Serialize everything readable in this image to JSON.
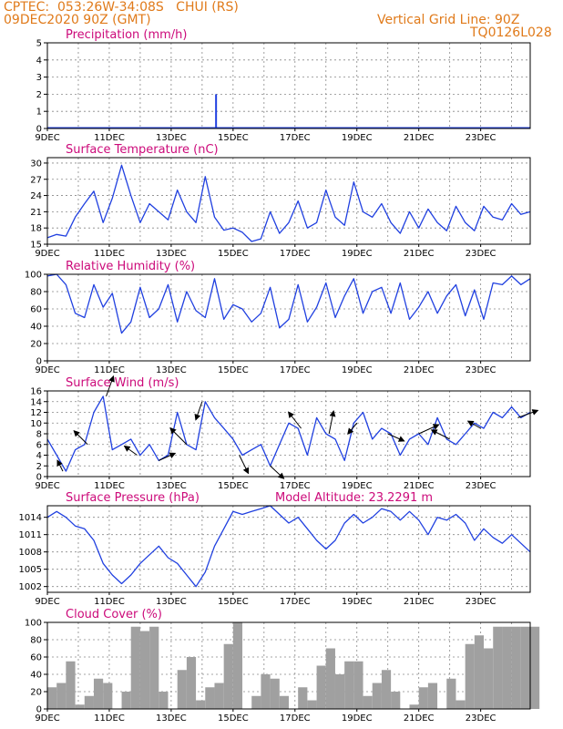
{
  "header": {
    "line1": "CPTEC:  053:26W-34:08S   CHUI (RS)",
    "line2": "09DEC2020 90Z (GMT)",
    "grid_note": "Vertical Grid Line: 90Z",
    "code": "TQ0126L028"
  },
  "x_ticks": [
    "9DEC",
    "11DEC",
    "13DEC",
    "15DEC",
    "17DEC",
    "19DEC",
    "21DEC",
    "23DEC"
  ],
  "model_altitude": "Model Altitude: 23.2291  m",
  "colors": {
    "line": "#2040e0",
    "bar": "#a0a0a0",
    "title": "#cc0a7a",
    "header": "#e07a1a",
    "arrow": "#000000"
  },
  "chart_data": [
    {
      "id": "precip",
      "type": "bar",
      "title": "Precipitation  (mm/h)",
      "ylim": [
        0,
        5
      ],
      "yticks": [
        "0",
        "1",
        "2",
        "3",
        "4",
        "5"
      ],
      "x_days": [
        5.45
      ],
      "values": [
        2.0
      ],
      "grid": true
    },
    {
      "id": "temp",
      "type": "line",
      "title": "Surface Temperature  (nC)",
      "ylim": [
        15,
        31
      ],
      "yticks": [
        "15",
        "18",
        "21",
        "24",
        "27",
        "30"
      ],
      "x_days": [
        0,
        0.3,
        0.6,
        0.9,
        1.2,
        1.5,
        1.8,
        2.1,
        2.4,
        2.7,
        3.0,
        3.3,
        3.6,
        3.9,
        4.2,
        4.5,
        4.8,
        5.1,
        5.4,
        5.7,
        6.0,
        6.3,
        6.6,
        6.9,
        7.2,
        7.5,
        7.8,
        8.1,
        8.4,
        8.7,
        9.0,
        9.3,
        9.6,
        9.9,
        10.2,
        10.5,
        10.8,
        11.1,
        11.4,
        11.7,
        12.0,
        12.3,
        12.6,
        12.9,
        13.2,
        13.5,
        13.8,
        14.1,
        14.4,
        14.7,
        15.0,
        15.3,
        15.6
      ],
      "values": [
        16.2,
        16.8,
        16.5,
        20.0,
        22.5,
        24.8,
        19.0,
        23.5,
        29.6,
        24.0,
        19.0,
        22.5,
        21.0,
        19.5,
        25.0,
        21.0,
        19.0,
        27.5,
        20.0,
        17.6,
        18.0,
        17.2,
        15.5,
        16.0,
        21.0,
        17.0,
        19.0,
        23.0,
        18.0,
        19.0,
        25.0,
        20.0,
        18.5,
        26.5,
        21.0,
        20.0,
        22.5,
        19.0,
        17.0,
        21.0,
        18.0,
        21.5,
        19.0,
        17.5,
        22.0,
        19.0,
        17.5,
        22.0,
        20.0,
        19.5,
        22.5,
        20.5,
        21.0
      ],
      "grid": true
    },
    {
      "id": "humidity",
      "type": "line",
      "title": "Relative Humidity  (%)",
      "ylim": [
        0,
        100
      ],
      "yticks": [
        "0",
        "20",
        "40",
        "60",
        "80",
        "100"
      ],
      "x_days": [
        0,
        0.3,
        0.6,
        0.9,
        1.2,
        1.5,
        1.8,
        2.1,
        2.4,
        2.7,
        3.0,
        3.3,
        3.6,
        3.9,
        4.2,
        4.5,
        4.8,
        5.1,
        5.4,
        5.7,
        6.0,
        6.3,
        6.6,
        6.9,
        7.2,
        7.5,
        7.8,
        8.1,
        8.4,
        8.7,
        9.0,
        9.3,
        9.6,
        9.9,
        10.2,
        10.5,
        10.8,
        11.1,
        11.4,
        11.7,
        12.0,
        12.3,
        12.6,
        12.9,
        13.2,
        13.5,
        13.8,
        14.1,
        14.4,
        14.7,
        15.0,
        15.3,
        15.6
      ],
      "values": [
        98,
        100,
        88,
        55,
        50,
        88,
        62,
        78,
        32,
        45,
        85,
        50,
        60,
        88,
        45,
        80,
        58,
        50,
        95,
        48,
        65,
        60,
        45,
        55,
        85,
        38,
        48,
        88,
        45,
        62,
        90,
        50,
        75,
        95,
        55,
        80,
        85,
        55,
        90,
        48,
        62,
        80,
        55,
        75,
        88,
        52,
        82,
        48,
        90,
        88,
        98,
        88,
        95
      ],
      "grid": true
    },
    {
      "id": "wind",
      "type": "line",
      "title": "Surface Wind  (m/s)",
      "ylim": [
        0,
        16
      ],
      "yticks": [
        "0",
        "2",
        "4",
        "6",
        "8",
        "10",
        "12",
        "14",
        "16"
      ],
      "x_days": [
        0,
        0.3,
        0.6,
        0.9,
        1.2,
        1.5,
        1.8,
        2.1,
        2.4,
        2.7,
        3.0,
        3.3,
        3.6,
        3.9,
        4.2,
        4.5,
        4.8,
        5.1,
        5.4,
        5.7,
        6.0,
        6.3,
        6.6,
        6.9,
        7.2,
        7.5,
        7.8,
        8.1,
        8.4,
        8.7,
        9.0,
        9.3,
        9.6,
        9.9,
        10.2,
        10.5,
        10.8,
        11.1,
        11.4,
        11.7,
        12.0,
        12.3,
        12.6,
        12.9,
        13.2,
        13.5,
        13.8,
        14.1,
        14.4,
        14.7,
        15.0,
        15.3,
        15.6
      ],
      "values": [
        7,
        4,
        1,
        5,
        6,
        12,
        15,
        5,
        6,
        7,
        4,
        6,
        3,
        4,
        12,
        6,
        5,
        14,
        11,
        9,
        7,
        4,
        5,
        6,
        2,
        6,
        10,
        9,
        4,
        11,
        8,
        7,
        3,
        10,
        12,
        7,
        9,
        8,
        4,
        7,
        8,
        6,
        11,
        7,
        6,
        8,
        10,
        9,
        12,
        11,
        13,
        11,
        12
      ],
      "arrows_x_days": [
        0.5,
        1.3,
        1.9,
        2.9,
        3.6,
        4.5,
        5.0,
        6.2,
        7.2,
        8.2,
        9.1,
        10.0,
        11.0,
        12.0,
        13.0,
        14.0,
        15.2
      ],
      "arrows_dx": [
        -6,
        -15,
        8,
        -14,
        18,
        -18,
        -7,
        10,
        15,
        -14,
        5,
        -10,
        18,
        22,
        -20,
        -14,
        22
      ],
      "arrows_dy": [
        -12,
        -15,
        -22,
        -10,
        -8,
        -18,
        20,
        20,
        14,
        -18,
        -25,
        12,
        8,
        -10,
        -10,
        -8,
        -8
      ],
      "grid": true
    },
    {
      "id": "pressure",
      "type": "line",
      "title": "Surface Pressure  (hPa)",
      "ylim": [
        1001,
        1016
      ],
      "yticks": [
        "1002",
        "1005",
        "1008",
        "1011",
        "1014"
      ],
      "x_days": [
        0,
        0.3,
        0.6,
        0.9,
        1.2,
        1.5,
        1.8,
        2.1,
        2.4,
        2.7,
        3.0,
        3.3,
        3.6,
        3.9,
        4.2,
        4.5,
        4.8,
        5.1,
        5.4,
        5.7,
        6.0,
        6.3,
        6.6,
        6.9,
        7.2,
        7.5,
        7.8,
        8.1,
        8.4,
        8.7,
        9.0,
        9.3,
        9.6,
        9.9,
        10.2,
        10.5,
        10.8,
        11.1,
        11.4,
        11.7,
        12.0,
        12.3,
        12.6,
        12.9,
        13.2,
        13.5,
        13.8,
        14.1,
        14.4,
        14.7,
        15.0,
        15.3,
        15.6
      ],
      "values": [
        1014,
        1015,
        1014,
        1012.5,
        1012,
        1010,
        1006,
        1004,
        1002.5,
        1004,
        1006,
        1007.5,
        1009,
        1007,
        1006,
        1004,
        1002,
        1004.5,
        1009,
        1012,
        1015,
        1014.5,
        1015,
        1015.5,
        1016,
        1014.5,
        1013,
        1014,
        1012,
        1010,
        1008.5,
        1010,
        1013,
        1014.5,
        1013,
        1014,
        1015.5,
        1015,
        1013.5,
        1015,
        1013.5,
        1011,
        1014,
        1013.5,
        1014.5,
        1013,
        1010,
        1012,
        1010.5,
        1009.5,
        1011,
        1009.5,
        1008
      ],
      "grid": true
    },
    {
      "id": "cloud",
      "type": "bar",
      "title": "Cloud Cover  (%)",
      "ylim": [
        0,
        100
      ],
      "yticks": [
        "0",
        "20",
        "40",
        "60",
        "80",
        "100"
      ],
      "x_days": [
        0,
        0.3,
        0.6,
        0.9,
        1.2,
        1.5,
        1.8,
        2.1,
        2.4,
        2.7,
        3.0,
        3.3,
        3.6,
        3.9,
        4.2,
        4.5,
        4.8,
        5.1,
        5.4,
        5.7,
        6.0,
        6.3,
        6.6,
        6.9,
        7.2,
        7.5,
        7.8,
        8.1,
        8.4,
        8.7,
        9.0,
        9.3,
        9.6,
        9.9,
        10.2,
        10.5,
        10.8,
        11.1,
        11.4,
        11.7,
        12.0,
        12.3,
        12.6,
        12.9,
        13.2,
        13.5,
        13.8,
        14.1,
        14.4,
        14.7,
        15.0,
        15.3,
        15.6
      ],
      "values": [
        25,
        30,
        55,
        5,
        15,
        35,
        30,
        0,
        20,
        95,
        90,
        95,
        20,
        0,
        45,
        60,
        10,
        25,
        30,
        75,
        100,
        0,
        15,
        40,
        35,
        15,
        0,
        25,
        10,
        50,
        70,
        40,
        55,
        55,
        15,
        30,
        45,
        20,
        0,
        5,
        25,
        30,
        0,
        35,
        10,
        75,
        85,
        70,
        95,
        95,
        95,
        95,
        95
      ],
      "grid": true
    }
  ]
}
